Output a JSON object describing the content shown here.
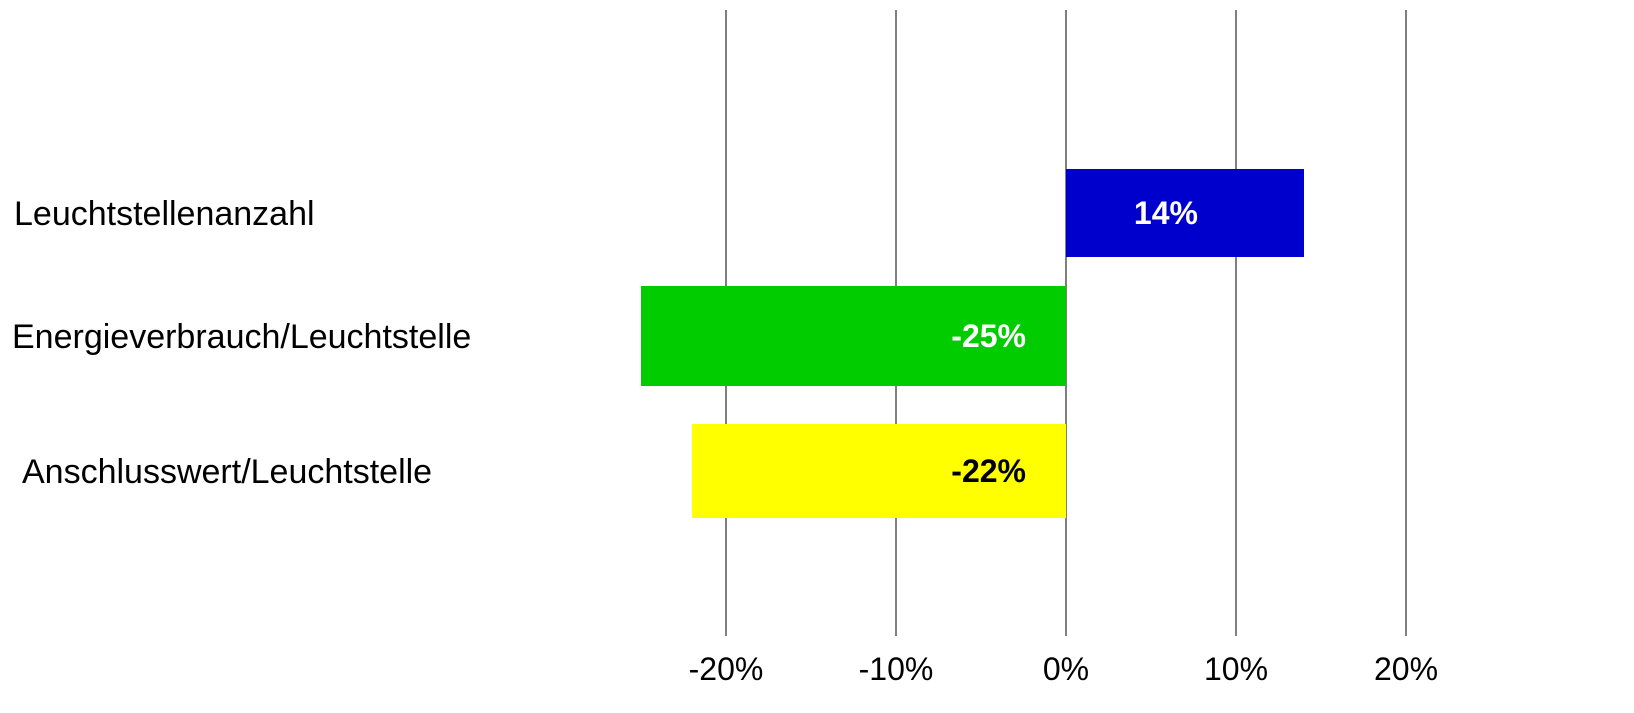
{
  "chart_data": {
    "type": "bar",
    "orientation": "horizontal",
    "categories": [
      "Leuchtstellenanzahl",
      "Energieverbrauch/Leuchtstelle",
      "Anschlusswert/Leuchtstelle"
    ],
    "values": [
      14,
      -25,
      -22
    ],
    "data_labels": [
      "14%",
      "-25%",
      "-22%"
    ],
    "bar_colors": [
      "#0000cc",
      "#00cc00",
      "#ffff00"
    ],
    "label_colors": [
      "#ffffff",
      "#ffffff",
      "#000000"
    ],
    "x_ticks": [
      -20,
      -10,
      0,
      10,
      20
    ],
    "x_tick_labels": [
      "-20%",
      "-10%",
      "0%",
      "10%",
      "20%"
    ],
    "xlim": [
      -25,
      20
    ],
    "grid": "vertical",
    "legend": "none"
  }
}
